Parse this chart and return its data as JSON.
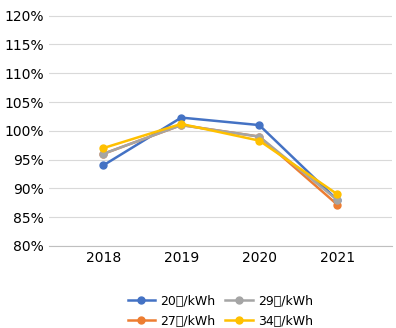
{
  "years": [
    2018,
    2019,
    2020,
    2021
  ],
  "series": [
    {
      "label": "20円/kWh",
      "values": [
        0.94,
        1.023,
        1.01,
        0.88
      ],
      "color": "#4472C4",
      "marker": "o"
    },
    {
      "label": "27円/kWh",
      "values": [
        0.96,
        1.01,
        0.99,
        0.872
      ],
      "color": "#ED7D31",
      "marker": "o"
    },
    {
      "label": "29円/kWh",
      "values": [
        0.96,
        1.01,
        0.99,
        0.88
      ],
      "color": "#A5A5A5",
      "marker": "o"
    },
    {
      "label": "34円/kWh",
      "values": [
        0.97,
        1.012,
        0.983,
        0.89
      ],
      "color": "#FFC000",
      "marker": "o"
    }
  ],
  "ylim_low": 0.8,
  "ylim_high": 1.22,
  "yticks": [
    0.8,
    0.85,
    0.9,
    0.95,
    1.0,
    1.05,
    1.1,
    1.15,
    1.2
  ],
  "background_color": "#FFFFFF",
  "grid_color": "#D9D9D9",
  "tick_fontsize": 10,
  "legend_fontsize": 9
}
